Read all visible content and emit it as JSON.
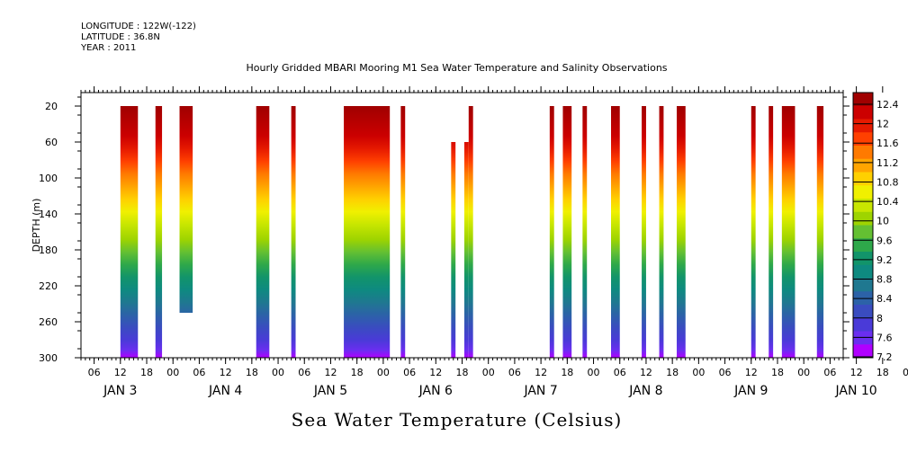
{
  "header": {
    "longitude": "LONGITUDE : 122W(-122)",
    "latitude": "LATITUDE : 36.8N",
    "year": "YEAR : 2011"
  },
  "chart_data": {
    "type": "heatmap",
    "title": "Hourly Gridded MBARI Mooring M1 Sea Water Temperature and Salinity Observations",
    "bottom_title": "Sea Water Temperature (Celsius)",
    "ylabel": "DEPTH (m)",
    "xlabel": "",
    "ylim": [
      300,
      5
    ],
    "y_ticks": [
      20,
      60,
      100,
      140,
      180,
      220,
      260,
      300
    ],
    "x_start": "JAN 3 00:00",
    "x_range_hours": [
      3,
      177
    ],
    "x_hour_ticks": [
      "06",
      "12",
      "18",
      "00",
      "06",
      "12",
      "18",
      "00",
      "06",
      "12",
      "18",
      "00",
      "06",
      "12",
      "18",
      "00",
      "06",
      "12",
      "18",
      "00",
      "06",
      "12",
      "18",
      "00",
      "06",
      "12",
      "18",
      "00",
      "06",
      "12",
      "18",
      "00"
    ],
    "x_day_labels": [
      "JAN 3",
      "JAN 4",
      "JAN 5",
      "JAN 6",
      "JAN 7",
      "JAN 8",
      "JAN 9",
      "JAN 10"
    ],
    "colorbar": {
      "levels": [
        12.4,
        12,
        11.6,
        11.2,
        10.8,
        10.4,
        10,
        9.6,
        9.2,
        8.8,
        8.4,
        8,
        7.6,
        7.2
      ],
      "colors": [
        "#a00000",
        "#cc0000",
        "#e61a00",
        "#ff4000",
        "#ff7a00",
        "#ffa500",
        "#ffd000",
        "#f0f000",
        "#c8e600",
        "#9ed400",
        "#64c032",
        "#2ea84a",
        "#12946a",
        "#0e8a80",
        "#1f7890",
        "#2c62a8",
        "#3a4cc0",
        "#4a3ad8",
        "#6a2ef0",
        "#b000ff"
      ]
    },
    "segments": [
      {
        "start": 12.0,
        "end": 16.0,
        "top": 20,
        "bottom": 300
      },
      {
        "start": 20.0,
        "end": 21.5,
        "top": 20,
        "bottom": 300
      },
      {
        "start": 25.5,
        "end": 28.5,
        "top": 20,
        "bottom": 250
      },
      {
        "start": 43.0,
        "end": 46.0,
        "top": 20,
        "bottom": 300
      },
      {
        "start": 51.0,
        "end": 52.0,
        "top": 20,
        "bottom": 300
      },
      {
        "start": 63.0,
        "end": 73.5,
        "top": 20,
        "bottom": 300
      },
      {
        "start": 76.0,
        "end": 77.0,
        "top": 20,
        "bottom": 300
      },
      {
        "start": 87.5,
        "end": 88.5,
        "top": 60,
        "bottom": 300
      },
      {
        "start": 90.5,
        "end": 91.5,
        "top": 60,
        "bottom": 300
      },
      {
        "start": 91.5,
        "end": 92.5,
        "top": 20,
        "bottom": 300
      },
      {
        "start": 110.0,
        "end": 111.0,
        "top": 20,
        "bottom": 300
      },
      {
        "start": 113.0,
        "end": 115.0,
        "top": 20,
        "bottom": 300
      },
      {
        "start": 117.5,
        "end": 118.5,
        "top": 20,
        "bottom": 300
      },
      {
        "start": 124.0,
        "end": 126.0,
        "top": 20,
        "bottom": 300
      },
      {
        "start": 131.0,
        "end": 132.0,
        "top": 20,
        "bottom": 300
      },
      {
        "start": 135.0,
        "end": 136.0,
        "top": 20,
        "bottom": 300
      },
      {
        "start": 139.0,
        "end": 141.0,
        "top": 20,
        "bottom": 300
      },
      {
        "start": 156.0,
        "end": 157.0,
        "top": 20,
        "bottom": 300
      },
      {
        "start": 160.0,
        "end": 161.0,
        "top": 20,
        "bottom": 300
      },
      {
        "start": 163.0,
        "end": 166.0,
        "top": 20,
        "bottom": 300
      },
      {
        "start": 171.0,
        "end": 172.5,
        "top": 20,
        "bottom": 300
      }
    ]
  }
}
